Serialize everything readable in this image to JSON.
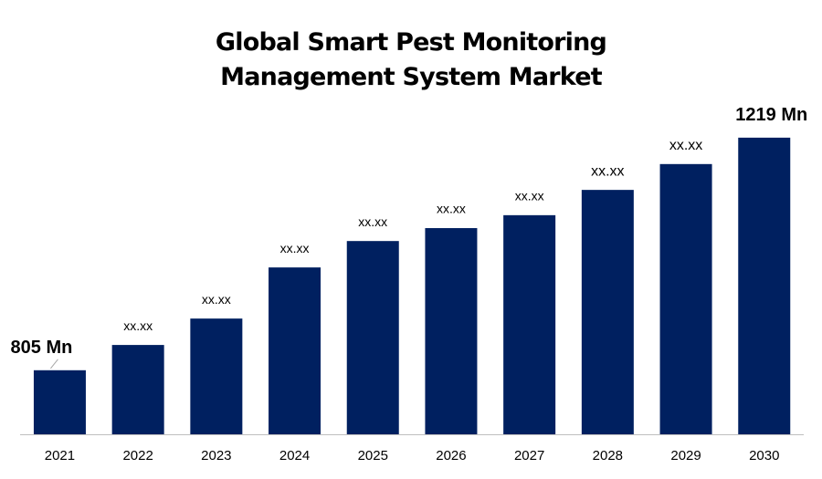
{
  "chart_data": {
    "type": "bar",
    "title": "Global Smart Pest Monitoring Management System Market",
    "categories": [
      "2021",
      "2022",
      "2023",
      "2024",
      "2025",
      "2026",
      "2027",
      "2028",
      "2029",
      "2030"
    ],
    "values": [
      805,
      850,
      897,
      988,
      1035,
      1058,
      1081,
      1126,
      1172,
      1219
    ],
    "value_labels": [
      "805 Mn",
      "xx.xx",
      "xx.xx",
      "xx.xx",
      "xx.xx",
      "xx.xx",
      "xx.xx",
      "xx.xx",
      "xx.xx",
      "1219 Mn"
    ],
    "color": "#002060",
    "ylim": [
      691,
      1300
    ]
  }
}
